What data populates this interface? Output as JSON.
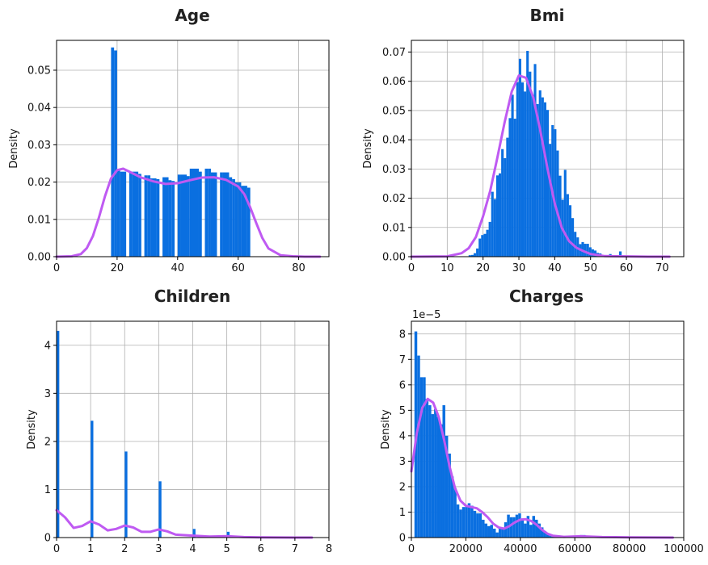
{
  "figure": {
    "bar_color": "#0a6fe0",
    "kde_color": "#bf5af2",
    "grid_color": "#b0b0b0"
  },
  "chart_data": [
    {
      "type": "bar",
      "title": "Age",
      "ylabel": "Density",
      "xlim": [
        0,
        90
      ],
      "ylim": [
        0,
        0.058
      ],
      "xticks": [
        0,
        20,
        40,
        60,
        80
      ],
      "yticks": [
        0.0,
        0.01,
        0.02,
        0.03,
        0.04,
        0.05
      ],
      "ytick_labels": [
        "0.00",
        "0.01",
        "0.02",
        "0.03",
        "0.04",
        "0.05"
      ],
      "grid": true,
      "histogram": {
        "bin_edges": [
          18,
          19,
          20,
          21,
          23,
          24,
          25,
          27,
          28,
          29,
          30,
          31,
          33,
          34,
          35,
          37,
          38,
          39,
          40,
          41,
          43,
          44,
          45,
          47,
          48,
          49,
          50,
          51,
          53,
          54,
          55,
          57,
          58,
          59,
          60,
          61,
          63,
          64
        ],
        "densities": [
          0.0561,
          0.0553,
          0.0231,
          0.0228,
          0,
          0.0227,
          0.0228,
          0.0222,
          0,
          0.0218,
          0.0218,
          0.021,
          0.0208,
          0,
          0.0213,
          0.0205,
          0.0203,
          0,
          0.022,
          0.022,
          0.0216,
          0.0236,
          0.0236,
          0.0228,
          0,
          0.0236,
          0.0236,
          0.0226,
          0,
          0.0226,
          0.0226,
          0.0213,
          0.0208,
          0.0199,
          0.0199,
          0.019,
          0.0185
        ]
      },
      "kde": {
        "x": [
          0,
          5,
          8,
          10,
          12,
          14,
          16,
          18,
          20,
          22,
          24,
          28,
          32,
          36,
          40,
          44,
          48,
          52,
          56,
          60,
          62,
          64,
          66,
          68,
          70,
          74,
          78,
          82,
          87
        ],
        "y": [
          0.0,
          0.0001,
          0.0007,
          0.0023,
          0.0055,
          0.0105,
          0.0162,
          0.021,
          0.0232,
          0.0236,
          0.0228,
          0.0212,
          0.0202,
          0.0195,
          0.0197,
          0.0205,
          0.0212,
          0.0213,
          0.0206,
          0.0188,
          0.0168,
          0.0132,
          0.009,
          0.005,
          0.0022,
          0.0004,
          0.0001,
          0.0,
          0.0
        ]
      }
    },
    {
      "type": "bar",
      "title": "Bmi",
      "ylabel": "Density",
      "xlim": [
        0,
        76
      ],
      "ylim": [
        0,
        0.074
      ],
      "xticks": [
        0,
        10,
        20,
        30,
        40,
        50,
        60,
        70
      ],
      "yticks": [
        0.0,
        0.01,
        0.02,
        0.03,
        0.04,
        0.05,
        0.06,
        0.07
      ],
      "ytick_labels": [
        "0.00",
        "0.01",
        "0.02",
        "0.03",
        "0.04",
        "0.05",
        "0.06",
        "0.07"
      ],
      "grid": true,
      "histogram": {
        "bin_start": 15.96,
        "bin_width": 0.7,
        "densities": [
          0.0005,
          0.0006,
          0.0012,
          0.0028,
          0.0062,
          0.0074,
          0.0078,
          0.0092,
          0.0119,
          0.0222,
          0.0197,
          0.0278,
          0.0285,
          0.0368,
          0.0337,
          0.0407,
          0.0474,
          0.0554,
          0.0472,
          0.0597,
          0.0677,
          0.0596,
          0.0565,
          0.0704,
          0.0633,
          0.0553,
          0.0659,
          0.0522,
          0.0569,
          0.0545,
          0.0528,
          0.0502,
          0.0386,
          0.045,
          0.0436,
          0.0363,
          0.0277,
          0.0195,
          0.0297,
          0.0214,
          0.0176,
          0.0132,
          0.0085,
          0.0066,
          0.0043,
          0.005,
          0.0044,
          0.0044,
          0.0032,
          0.0025,
          0.0021,
          0.0013,
          0.0011,
          0.0005,
          0.0005,
          0.0004,
          0.0009,
          0.0002,
          0.0,
          0.0,
          0.0018,
          0.0004
        ]
      },
      "kde": {
        "x": [
          0,
          10,
          14,
          16,
          18,
          20,
          22,
          24,
          26,
          28,
          30,
          32,
          34,
          36,
          38,
          40,
          42,
          44,
          46,
          48,
          50,
          54,
          60,
          66,
          72
        ],
        "y": [
          0.0,
          0.0001,
          0.0012,
          0.0029,
          0.0067,
          0.0138,
          0.0226,
          0.0339,
          0.0459,
          0.0565,
          0.062,
          0.0612,
          0.0545,
          0.043,
          0.03,
          0.0182,
          0.0098,
          0.0053,
          0.0031,
          0.0019,
          0.0009,
          0.0002,
          0.0001,
          0.0,
          0.0
        ]
      }
    },
    {
      "type": "bar",
      "title": "Children",
      "ylabel": "Density",
      "xlim": [
        0,
        8
      ],
      "ylim": [
        0,
        4.5
      ],
      "xticks": [
        0,
        1,
        2,
        3,
        4,
        5,
        6,
        7,
        8
      ],
      "yticks": [
        0,
        1,
        2,
        3,
        4
      ],
      "ytick_labels": [
        "0",
        "1",
        "2",
        "3",
        "4"
      ],
      "grid": true,
      "histogram": {
        "bin_width": 0.08,
        "bars": [
          {
            "x": 0.0,
            "density": 4.3
          },
          {
            "x": 1.0,
            "density": 2.43
          },
          {
            "x": 2.0,
            "density": 1.79
          },
          {
            "x": 3.0,
            "density": 1.17
          },
          {
            "x": 4.0,
            "density": 0.18
          },
          {
            "x": 5.0,
            "density": 0.12
          }
        ]
      },
      "kde": {
        "x": [
          0,
          0.25,
          0.5,
          0.75,
          1.0,
          1.25,
          1.5,
          1.75,
          2.0,
          2.25,
          2.5,
          2.75,
          3.0,
          3.25,
          3.5,
          4.0,
          4.5,
          5.0,
          5.5,
          6.0,
          6.5,
          7.0,
          7.5
        ],
        "y": [
          0.57,
          0.42,
          0.2,
          0.24,
          0.34,
          0.27,
          0.15,
          0.18,
          0.25,
          0.21,
          0.12,
          0.12,
          0.17,
          0.13,
          0.06,
          0.04,
          0.02,
          0.03,
          0.01,
          0.005,
          0.002,
          0.0,
          0.0
        ]
      }
    },
    {
      "type": "bar",
      "title": "Charges",
      "ylabel": "Density",
      "offset_label": "1e−5",
      "xlim": [
        0,
        100000
      ],
      "ylim": [
        0,
        8.5
      ],
      "xticks": [
        0,
        20000,
        40000,
        60000,
        80000,
        100000
      ],
      "yticks": [
        0,
        1,
        2,
        3,
        4,
        5,
        6,
        7,
        8
      ],
      "ytick_labels": [
        "0",
        "1",
        "2",
        "3",
        "4",
        "5",
        "6",
        "7",
        "8"
      ],
      "grid": true,
      "histogram": {
        "bin_start": 1121,
        "bin_width": 1030,
        "densities": [
          8.1,
          7.15,
          6.3,
          6.3,
          5.45,
          5.2,
          4.85,
          5.05,
          4.75,
          4.45,
          5.2,
          4.0,
          3.3,
          2.4,
          1.95,
          1.3,
          1.1,
          1.2,
          1.2,
          1.35,
          1.25,
          1.05,
          0.95,
          0.95,
          0.7,
          0.55,
          0.45,
          0.5,
          0.35,
          0.2,
          0.35,
          0.35,
          0.6,
          0.9,
          0.8,
          0.8,
          0.9,
          0.95,
          0.75,
          0.55,
          0.85,
          0.5,
          0.85,
          0.7,
          0.55,
          0.4,
          0.25,
          0.15,
          0.1,
          0.05,
          0.05,
          0.05,
          0.05,
          0.05,
          0.05,
          0.05,
          0.05,
          0.05,
          0.05,
          0.1,
          0.1
        ]
      },
      "kde": {
        "x": [
          0,
          2000,
          4000,
          6000,
          8000,
          10000,
          12000,
          14000,
          16000,
          18000,
          20000,
          22000,
          24000,
          26000,
          28000,
          30000,
          32000,
          34000,
          36000,
          38000,
          40000,
          42000,
          44000,
          46000,
          48000,
          50000,
          52000,
          56000,
          62000,
          70000,
          80000,
          96000
        ],
        "y": [
          2.6,
          4.1,
          5.1,
          5.45,
          5.3,
          4.75,
          3.85,
          2.8,
          1.95,
          1.45,
          1.25,
          1.2,
          1.15,
          1.0,
          0.8,
          0.55,
          0.4,
          0.35,
          0.45,
          0.6,
          0.7,
          0.72,
          0.65,
          0.5,
          0.3,
          0.15,
          0.07,
          0.03,
          0.05,
          0.02,
          0.01,
          0.0
        ]
      }
    }
  ]
}
